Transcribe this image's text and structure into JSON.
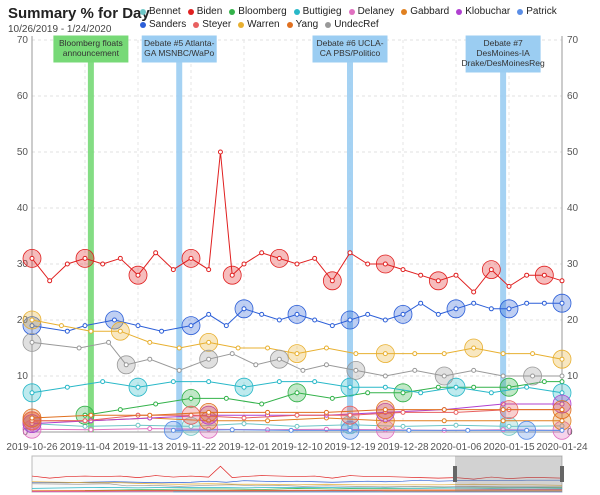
{
  "chart_data": {
    "type": "scatter",
    "title": "Summary % for Day",
    "subtitle": "10/26/2019 - 1/24/2020",
    "x_start": "2019-10-26",
    "x_end": "2020-01-24",
    "x_ticks": [
      "2019-10-26",
      "2019-11-04",
      "2019-11-13",
      "2019-11-22",
      "2019-12-01",
      "2019-12-10",
      "2019-12-19",
      "2019-12-28",
      "2020-01-06",
      "2020-01-15",
      "2020-01-24"
    ],
    "ylim": [
      0,
      70
    ],
    "y_ticks": [
      0,
      10,
      20,
      30,
      40,
      50,
      60,
      70
    ],
    "grid": true,
    "legend_placement": "top",
    "series": [
      {
        "name": "Bennet",
        "color": "#6ec6c6",
        "values": [
          [
            0,
            1.5
          ],
          [
            9,
            1
          ],
          [
            18,
            1.2
          ],
          [
            27,
            1
          ],
          [
            36,
            1.5
          ],
          [
            45,
            1
          ],
          [
            54,
            1.3
          ],
          [
            63,
            1
          ],
          [
            72,
            1.2
          ],
          [
            81,
            1
          ],
          [
            90,
            1.1
          ]
        ]
      },
      {
        "name": "Biden",
        "color": "#e02020",
        "values": [
          [
            0,
            31
          ],
          [
            3,
            27
          ],
          [
            6,
            30
          ],
          [
            9,
            31
          ],
          [
            12,
            30
          ],
          [
            15,
            31
          ],
          [
            18,
            28
          ],
          [
            21,
            32
          ],
          [
            24,
            29
          ],
          [
            27,
            31
          ],
          [
            30,
            29
          ],
          [
            32,
            50
          ],
          [
            34,
            28
          ],
          [
            36,
            30
          ],
          [
            39,
            32
          ],
          [
            42,
            31
          ],
          [
            45,
            30
          ],
          [
            48,
            31
          ],
          [
            51,
            27
          ],
          [
            54,
            32
          ],
          [
            57,
            30
          ],
          [
            60,
            30
          ],
          [
            63,
            29
          ],
          [
            66,
            28
          ],
          [
            69,
            27
          ],
          [
            72,
            28
          ],
          [
            75,
            25
          ],
          [
            78,
            29
          ],
          [
            81,
            26
          ],
          [
            84,
            28
          ],
          [
            87,
            28
          ],
          [
            90,
            27
          ]
        ]
      },
      {
        "name": "Bloomberg",
        "color": "#33b24a",
        "values": [
          [
            9,
            3
          ],
          [
            15,
            4
          ],
          [
            21,
            5
          ],
          [
            27,
            6
          ],
          [
            33,
            6
          ],
          [
            39,
            5
          ],
          [
            45,
            7
          ],
          [
            51,
            6
          ],
          [
            57,
            7
          ],
          [
            63,
            7
          ],
          [
            69,
            8
          ],
          [
            75,
            8
          ],
          [
            81,
            8
          ],
          [
            87,
            9
          ],
          [
            90,
            9
          ]
        ]
      },
      {
        "name": "Buttigieg",
        "color": "#28b8c8",
        "values": [
          [
            0,
            7
          ],
          [
            6,
            8
          ],
          [
            12,
            9
          ],
          [
            18,
            8
          ],
          [
            24,
            9
          ],
          [
            30,
            9
          ],
          [
            36,
            8
          ],
          [
            42,
            9
          ],
          [
            48,
            9
          ],
          [
            54,
            8
          ],
          [
            60,
            8
          ],
          [
            66,
            7
          ],
          [
            72,
            8
          ],
          [
            78,
            7
          ],
          [
            84,
            8
          ],
          [
            90,
            7
          ]
        ]
      },
      {
        "name": "Delaney",
        "color": "#e070c0",
        "values": [
          [
            0,
            0.5
          ],
          [
            10,
            0.4
          ],
          [
            20,
            0.6
          ],
          [
            30,
            0.5
          ],
          [
            40,
            0.4
          ],
          [
            50,
            0.5
          ],
          [
            60,
            0.4
          ],
          [
            70,
            0.3
          ],
          [
            80,
            0.4
          ],
          [
            90,
            0.3
          ]
        ]
      },
      {
        "name": "Gabbard",
        "color": "#e08020",
        "values": [
          [
            0,
            2
          ],
          [
            10,
            2
          ],
          [
            20,
            2.5
          ],
          [
            30,
            2
          ],
          [
            40,
            2
          ],
          [
            50,
            2.5
          ],
          [
            60,
            2
          ],
          [
            70,
            2
          ],
          [
            80,
            2
          ],
          [
            90,
            2
          ]
        ]
      },
      {
        "name": "Klobuchar",
        "color": "#b040d0",
        "values": [
          [
            0,
            1.5
          ],
          [
            10,
            2
          ],
          [
            20,
            2.5
          ],
          [
            30,
            3
          ],
          [
            40,
            3
          ],
          [
            50,
            3
          ],
          [
            60,
            3.5
          ],
          [
            70,
            4
          ],
          [
            80,
            5
          ],
          [
            90,
            5
          ]
        ]
      },
      {
        "name": "Patrick",
        "color": "#5b8ee6",
        "values": [
          [
            24,
            0.3
          ],
          [
            34,
            0.4
          ],
          [
            44,
            0.3
          ],
          [
            54,
            0.3
          ],
          [
            64,
            0.3
          ],
          [
            74,
            0.3
          ],
          [
            84,
            0.3
          ],
          [
            90,
            0.3
          ]
        ]
      },
      {
        "name": "Sanders",
        "color": "#2c5fd8",
        "values": [
          [
            0,
            19
          ],
          [
            6,
            18
          ],
          [
            9,
            19
          ],
          [
            14,
            20
          ],
          [
            18,
            19
          ],
          [
            22,
            18
          ],
          [
            27,
            19
          ],
          [
            30,
            21
          ],
          [
            33,
            19
          ],
          [
            36,
            22
          ],
          [
            39,
            21
          ],
          [
            42,
            20
          ],
          [
            45,
            21
          ],
          [
            48,
            20
          ],
          [
            51,
            19
          ],
          [
            54,
            20
          ],
          [
            57,
            21
          ],
          [
            60,
            20
          ],
          [
            63,
            21
          ],
          [
            66,
            23
          ],
          [
            69,
            21
          ],
          [
            72,
            22
          ],
          [
            75,
            23
          ],
          [
            78,
            22
          ],
          [
            81,
            22
          ],
          [
            84,
            23
          ],
          [
            87,
            23
          ],
          [
            90,
            23
          ]
        ]
      },
      {
        "name": "Steyer",
        "color": "#e86060",
        "values": [
          [
            0,
            2
          ],
          [
            9,
            2
          ],
          [
            18,
            3
          ],
          [
            27,
            3
          ],
          [
            36,
            2.5
          ],
          [
            45,
            3
          ],
          [
            54,
            3
          ],
          [
            63,
            3.5
          ],
          [
            72,
            3.5
          ],
          [
            81,
            4
          ],
          [
            90,
            4
          ]
        ]
      },
      {
        "name": "Warren",
        "color": "#e8b030",
        "values": [
          [
            0,
            20
          ],
          [
            5,
            19
          ],
          [
            10,
            18
          ],
          [
            15,
            18
          ],
          [
            20,
            16
          ],
          [
            25,
            15
          ],
          [
            30,
            16
          ],
          [
            35,
            15
          ],
          [
            40,
            15
          ],
          [
            45,
            14
          ],
          [
            50,
            15
          ],
          [
            55,
            14
          ],
          [
            60,
            14
          ],
          [
            65,
            14
          ],
          [
            70,
            14
          ],
          [
            75,
            15
          ],
          [
            80,
            14
          ],
          [
            85,
            14
          ],
          [
            90,
            13
          ]
        ]
      },
      {
        "name": "Yang",
        "color": "#e07020",
        "values": [
          [
            0,
            2.5
          ],
          [
            10,
            3
          ],
          [
            20,
            3
          ],
          [
            30,
            3.5
          ],
          [
            40,
            3.5
          ],
          [
            50,
            3.5
          ],
          [
            60,
            4
          ],
          [
            70,
            4
          ],
          [
            80,
            4
          ],
          [
            90,
            4
          ]
        ]
      },
      {
        "name": "UndecRef",
        "color": "#999999",
        "values": [
          [
            0,
            16
          ],
          [
            8,
            15
          ],
          [
            13,
            16
          ],
          [
            16,
            12
          ],
          [
            20,
            13
          ],
          [
            25,
            11
          ],
          [
            30,
            13
          ],
          [
            34,
            14
          ],
          [
            38,
            12
          ],
          [
            42,
            13
          ],
          [
            46,
            11
          ],
          [
            50,
            12
          ],
          [
            55,
            11
          ],
          [
            60,
            10
          ],
          [
            65,
            11
          ],
          [
            70,
            10
          ],
          [
            75,
            11
          ],
          [
            80,
            10
          ],
          [
            85,
            10
          ],
          [
            90,
            10
          ]
        ]
      }
    ],
    "annotations": [
      {
        "text": [
          "Bloomberg floats",
          "announcement"
        ],
        "day": 10,
        "color": "#77d977"
      },
      {
        "text": [
          "Debate #5 Atlanta-",
          "GA MSNBC/WaPo"
        ],
        "day": 25,
        "color": "#9bcdf2"
      },
      {
        "text": [
          "Debate #6 UCLA-",
          "CA PBS/Politico"
        ],
        "day": 54,
        "color": "#9bcdf2"
      },
      {
        "text": [
          "Debate #7",
          "DesMoines-IA",
          "Drake/DesMoinesReg"
        ],
        "day": 80,
        "color": "#9bcdf2"
      }
    ]
  }
}
